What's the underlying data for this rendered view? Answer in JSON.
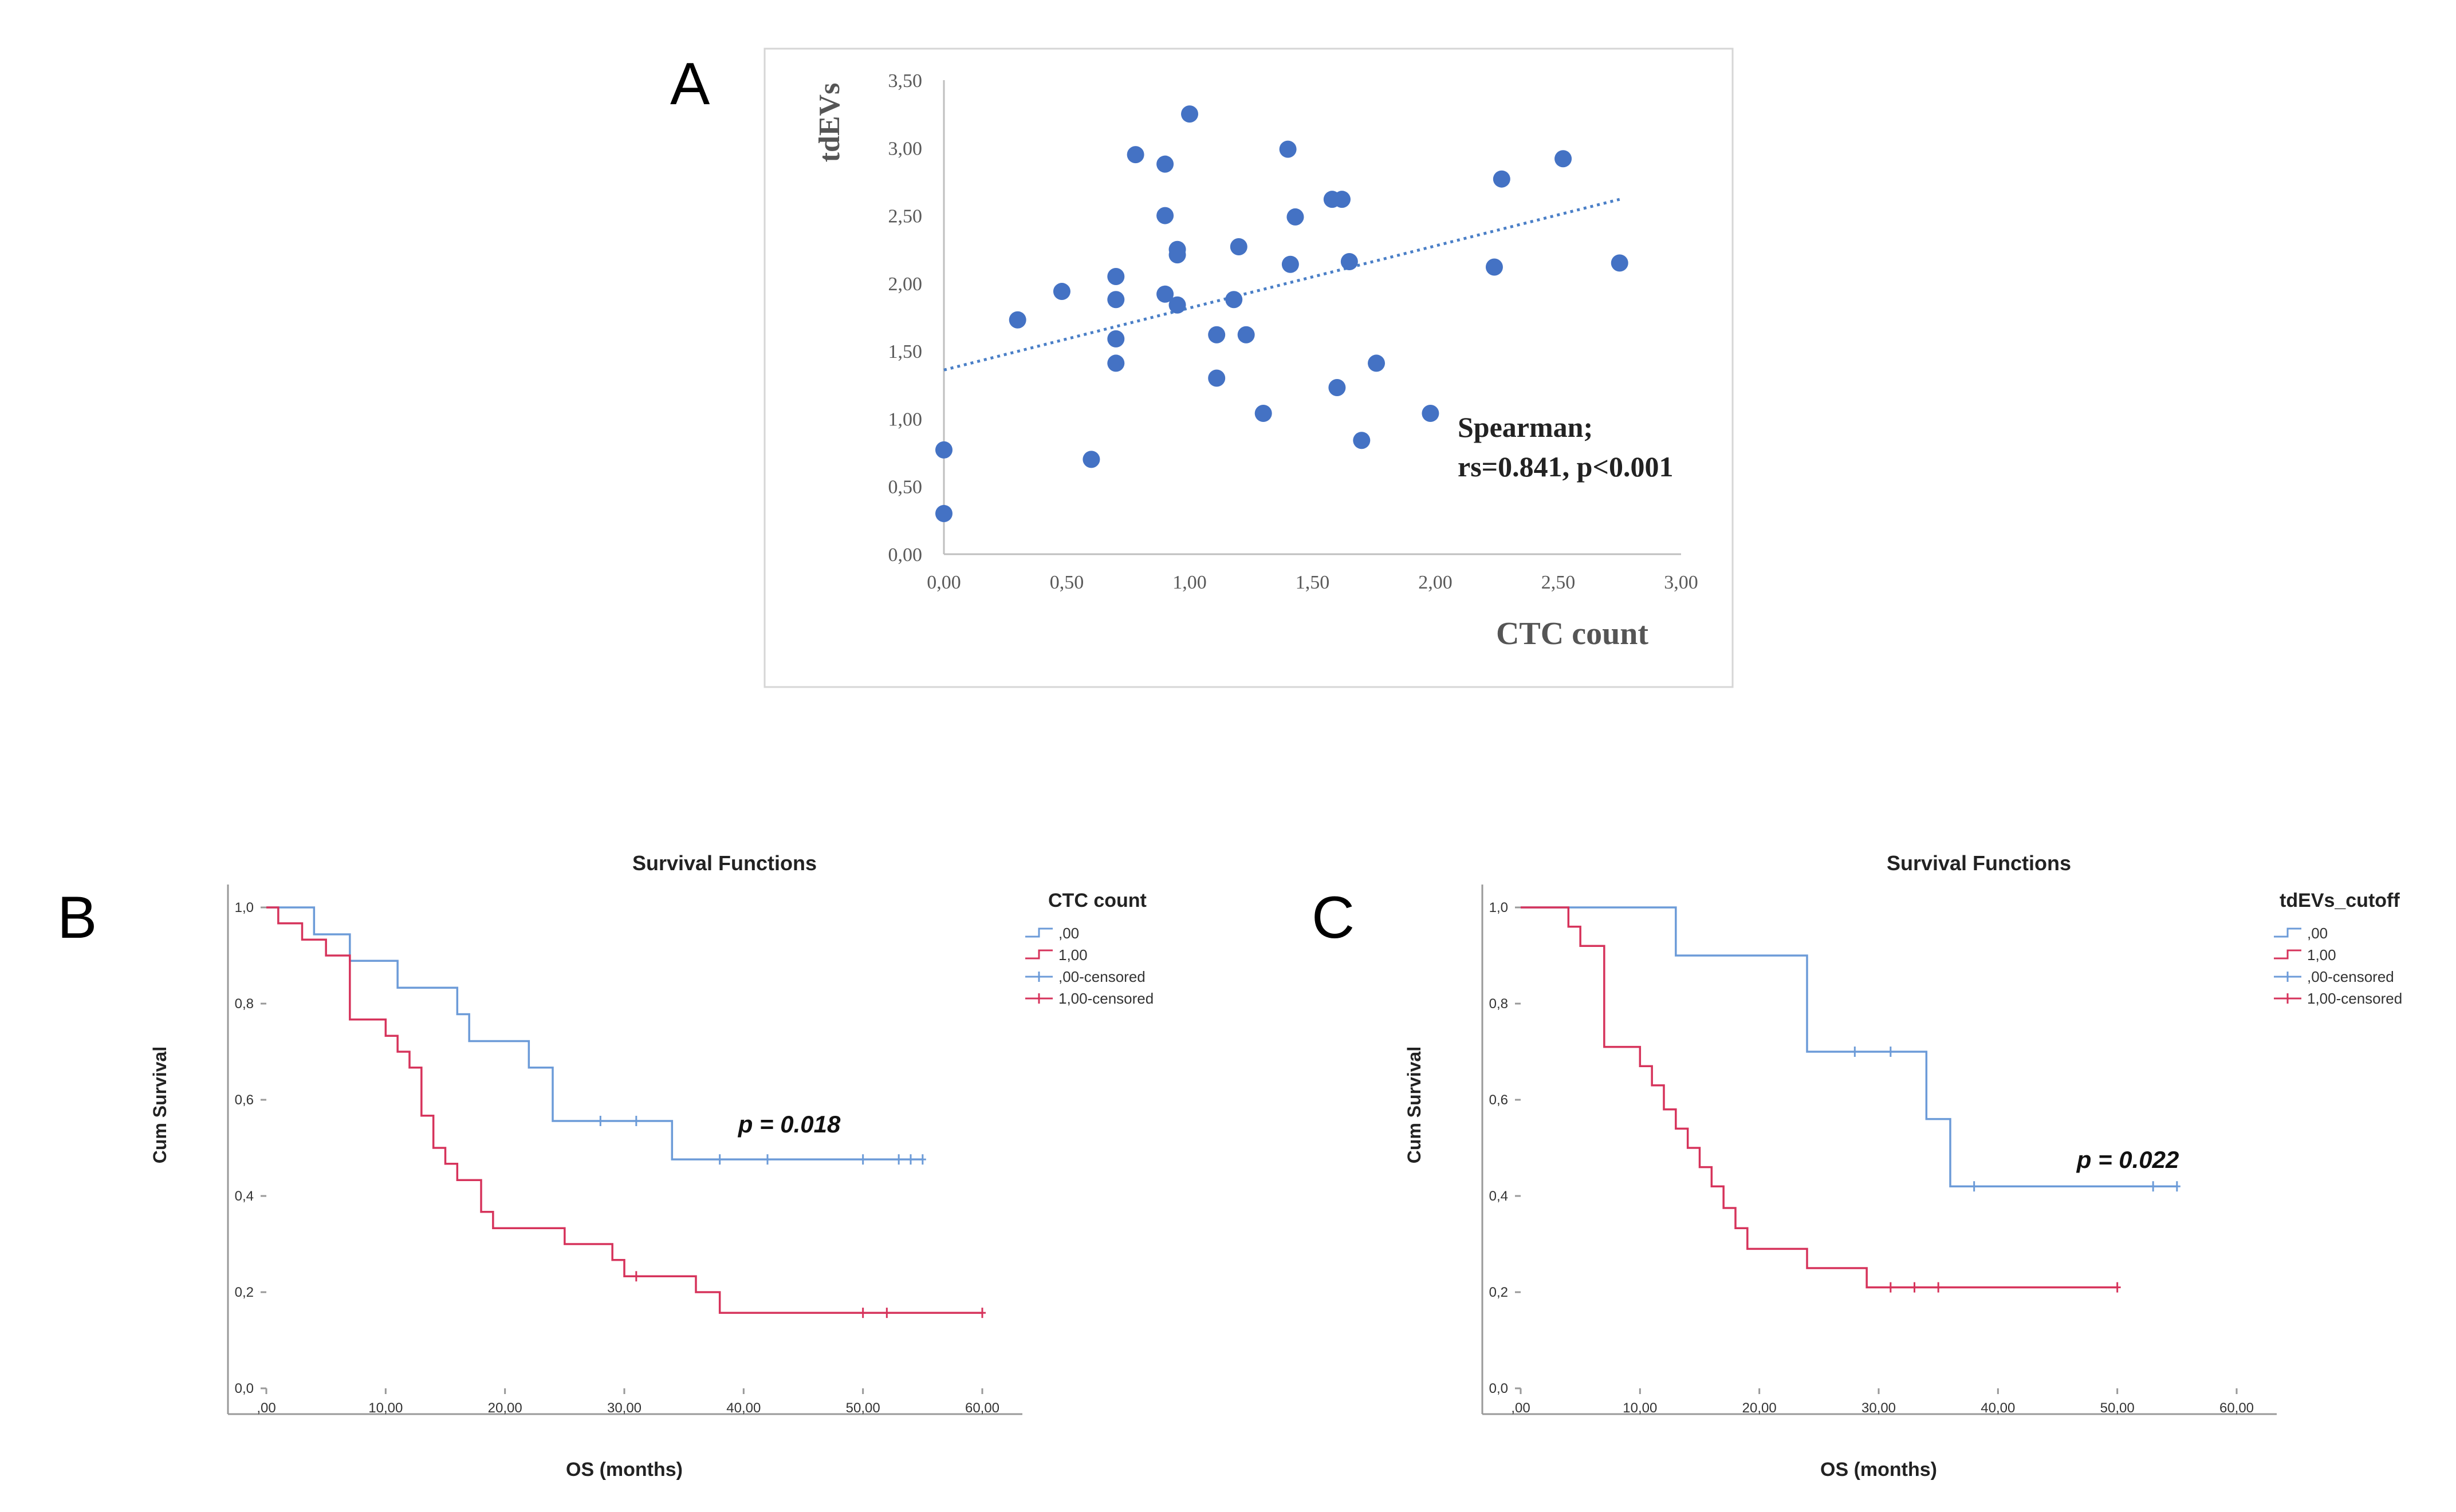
{
  "panels": {
    "A": {
      "letter": "A",
      "annotation_line1": "Spearman;",
      "annotation_line2": "rs=0.841, p<0.001"
    },
    "B": {
      "letter": "B",
      "legend_title": "CTC count",
      "p_label": "p = 0.018"
    },
    "C": {
      "letter": "C",
      "legend_title": "tdEVs_cutoff",
      "p_label": "p = 0.022"
    }
  },
  "chart_data": [
    {
      "id": "A",
      "type": "scatter",
      "title": "",
      "xlabel": "CTC count",
      "ylabel": "tdEVs",
      "xlim": [
        0,
        3
      ],
      "ylim": [
        0,
        3.5
      ],
      "xticks": [
        "0,00",
        "0,50",
        "1,00",
        "1,50",
        "2,00",
        "2,50",
        "3,00"
      ],
      "yticks": [
        "0,00",
        "0,50",
        "1,00",
        "1,50",
        "2,00",
        "2,50",
        "3,00",
        "3,50"
      ],
      "grid": false,
      "trendline": {
        "x": [
          0,
          2.75
        ],
        "y": [
          1.36,
          2.62
        ],
        "style": "dotted"
      },
      "points": [
        [
          0.0,
          0.77
        ],
        [
          0.0,
          0.3
        ],
        [
          0.3,
          1.73
        ],
        [
          0.48,
          1.94
        ],
        [
          0.6,
          0.7
        ],
        [
          0.7,
          2.05
        ],
        [
          0.7,
          1.88
        ],
        [
          0.7,
          1.59
        ],
        [
          0.7,
          1.41
        ],
        [
          0.78,
          2.95
        ],
        [
          0.9,
          2.88
        ],
        [
          0.9,
          2.5
        ],
        [
          0.9,
          1.92
        ],
        [
          0.95,
          2.25
        ],
        [
          0.95,
          2.21
        ],
        [
          0.95,
          1.84
        ],
        [
          1.0,
          3.25
        ],
        [
          1.11,
          1.62
        ],
        [
          1.11,
          1.3
        ],
        [
          1.18,
          1.88
        ],
        [
          1.2,
          2.27
        ],
        [
          1.23,
          1.62
        ],
        [
          1.3,
          1.04
        ],
        [
          1.4,
          2.99
        ],
        [
          1.41,
          2.14
        ],
        [
          1.43,
          2.49
        ],
        [
          1.58,
          2.62
        ],
        [
          1.62,
          2.62
        ],
        [
          1.6,
          1.23
        ],
        [
          1.65,
          2.16
        ],
        [
          1.7,
          0.84
        ],
        [
          1.76,
          1.41
        ],
        [
          1.98,
          1.04
        ],
        [
          2.24,
          2.12
        ],
        [
          2.27,
          2.77
        ],
        [
          2.52,
          2.92
        ],
        [
          2.75,
          2.15
        ]
      ]
    },
    {
      "id": "B",
      "type": "line",
      "subtype": "kaplan-meier",
      "title": "Survival Functions",
      "xlabel": "OS (months)",
      "ylabel": "Cum Survival",
      "xlim": [
        0,
        60
      ],
      "ylim": [
        0,
        1
      ],
      "xticks": [
        ",00",
        "10,00",
        "20,00",
        "30,00",
        "40,00",
        "50,00",
        "60,00"
      ],
      "yticks": [
        "0,0",
        "0,2",
        "0,4",
        "0,6",
        "0,8",
        "1,0"
      ],
      "legend": {
        "title": "CTC count",
        "position": "right",
        "entries": [
          ",00",
          "1,00",
          ",00-censored",
          "1,00-censored"
        ]
      },
      "series": [
        {
          "name": ",00",
          "color": "#6c9bd8",
          "steps": [
            [
              0,
              1.0
            ],
            [
              4,
              0.944
            ],
            [
              7,
              0.889
            ],
            [
              11,
              0.833
            ],
            [
              16,
              0.778
            ],
            [
              17,
              0.722
            ],
            [
              22,
              0.667
            ],
            [
              24,
              0.556
            ],
            [
              34,
              0.476
            ],
            [
              55,
              0.476
            ]
          ],
          "censored": [
            [
              28,
              0.556
            ],
            [
              31,
              0.556
            ],
            [
              38,
              0.476
            ],
            [
              42,
              0.476
            ],
            [
              50,
              0.476
            ],
            [
              53,
              0.476
            ],
            [
              54,
              0.476
            ],
            [
              55,
              0.476
            ]
          ]
        },
        {
          "name": "1,00",
          "color": "#d6335b",
          "steps": [
            [
              0,
              1.0
            ],
            [
              1,
              0.967
            ],
            [
              3,
              0.933
            ],
            [
              5,
              0.9
            ],
            [
              7,
              0.767
            ],
            [
              10,
              0.733
            ],
            [
              11,
              0.7
            ],
            [
              12,
              0.667
            ],
            [
              13,
              0.567
            ],
            [
              14,
              0.5
            ],
            [
              15,
              0.467
            ],
            [
              16,
              0.433
            ],
            [
              18,
              0.367
            ],
            [
              19,
              0.333
            ],
            [
              25,
              0.3
            ],
            [
              29,
              0.267
            ],
            [
              30,
              0.233
            ],
            [
              36,
              0.2
            ],
            [
              38,
              0.157
            ],
            [
              60,
              0.157
            ]
          ],
          "censored": [
            [
              31,
              0.233
            ],
            [
              50,
              0.157
            ],
            [
              52,
              0.157
            ],
            [
              60,
              0.157
            ]
          ]
        }
      ],
      "annotation": "p = 0.018"
    },
    {
      "id": "C",
      "type": "line",
      "subtype": "kaplan-meier",
      "title": "Survival Functions",
      "xlabel": "OS (months)",
      "ylabel": "Cum Survival",
      "xlim": [
        0,
        60
      ],
      "ylim": [
        0,
        1
      ],
      "xticks": [
        ",00",
        "10,00",
        "20,00",
        "30,00",
        "40,00",
        "50,00",
        "60,00"
      ],
      "yticks": [
        "0,0",
        "0,2",
        "0,4",
        "0,6",
        "0,8",
        "1,0"
      ],
      "legend": {
        "title": "tdEVs_cutoff",
        "position": "right",
        "entries": [
          ",00",
          "1,00",
          ",00-censored",
          "1,00-censored"
        ]
      },
      "series": [
        {
          "name": ",00",
          "color": "#6c9bd8",
          "steps": [
            [
              0,
              1.0
            ],
            [
              13,
              0.9
            ],
            [
              24,
              0.7
            ],
            [
              34,
              0.56
            ],
            [
              36,
              0.42
            ],
            [
              55,
              0.42
            ]
          ],
          "censored": [
            [
              28,
              0.7
            ],
            [
              31,
              0.7
            ],
            [
              38,
              0.42
            ],
            [
              53,
              0.42
            ],
            [
              55,
              0.42
            ]
          ]
        },
        {
          "name": "1,00",
          "color": "#d6335b",
          "steps": [
            [
              0,
              1.0
            ],
            [
              4,
              0.96
            ],
            [
              5,
              0.92
            ],
            [
              7,
              0.71
            ],
            [
              10,
              0.67
            ],
            [
              11,
              0.63
            ],
            [
              12,
              0.58
            ],
            [
              13,
              0.54
            ],
            [
              14,
              0.5
            ],
            [
              15,
              0.46
            ],
            [
              16,
              0.42
            ],
            [
              17,
              0.375
            ],
            [
              18,
              0.333
            ],
            [
              19,
              0.29
            ],
            [
              24,
              0.25
            ],
            [
              29,
              0.21
            ],
            [
              50,
              0.21
            ]
          ],
          "censored": [
            [
              31,
              0.21
            ],
            [
              33,
              0.21
            ],
            [
              35,
              0.21
            ],
            [
              50,
              0.21
            ]
          ]
        }
      ],
      "annotation": "p = 0.022"
    }
  ]
}
